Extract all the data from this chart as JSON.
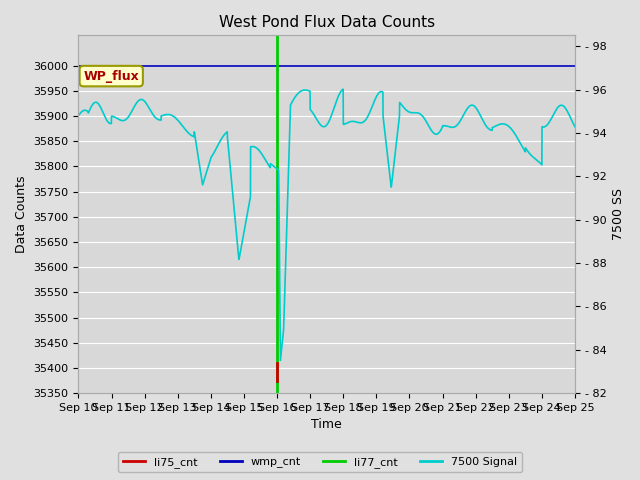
{
  "title": "West Pond Flux Data Counts",
  "xlabel": "Time",
  "ylabel_left": "Data Counts",
  "ylabel_right": "7500 SS",
  "fig_bg": "#e0e0e0",
  "plot_bg": "#d8d8d8",
  "grid_color": "#ffffff",
  "ylim_left": [
    35350,
    36060
  ],
  "ylim_right": [
    82,
    98.5
  ],
  "yticks_left": [
    35350,
    35400,
    35450,
    35500,
    35550,
    35600,
    35650,
    35700,
    35750,
    35800,
    35850,
    35900,
    35950,
    36000
  ],
  "yticks_right": [
    82,
    84,
    86,
    88,
    90,
    92,
    94,
    96,
    98
  ],
  "xtick_labels": [
    "Sep 10",
    "Sep 11",
    "Sep 12",
    "Sep 13",
    "Sep 14",
    "Sep 15",
    "Sep 16",
    "Sep 17",
    "Sep 18",
    "Sep 19",
    "Sep 20",
    "Sep 21",
    "Sep 22",
    "Sep 23",
    "Sep 24",
    "Sep 25"
  ],
  "wmp_cnt_color": "#0000bb",
  "li77_cnt_color": "#00cc00",
  "li75_cnt_color": "#cc0000",
  "signal_color": "#00cccc",
  "annotation_text": "WP_flux",
  "title_fontsize": 11,
  "tick_fontsize": 8,
  "label_fontsize": 9,
  "legend_fontsize": 8
}
